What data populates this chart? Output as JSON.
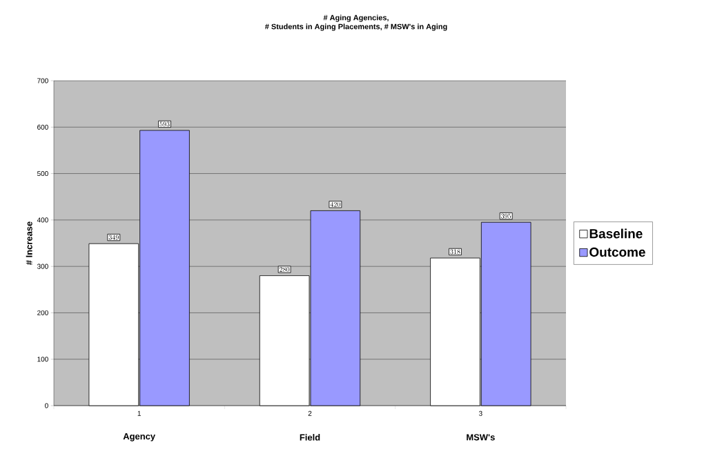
{
  "chart_data": {
    "type": "bar",
    "title": "# Aging Agencies,",
    "subtitle": "# Students in Aging Placements, # MSW's in Aging",
    "ylabel": "# Increase",
    "categories": [
      "1",
      "2",
      "3"
    ],
    "annotations": [
      "Agency",
      "Field",
      "MSW's"
    ],
    "series": [
      {
        "name": "Baseline",
        "color": "#ffffff",
        "values": [
          349,
          280,
          318
        ]
      },
      {
        "name": "Outcome",
        "color": "#9999ff",
        "values": [
          593,
          420,
          395
        ]
      }
    ],
    "ylim": [
      0,
      700
    ],
    "yticks": [
      0,
      100,
      200,
      300,
      400,
      500,
      600,
      700
    ],
    "grid": "y",
    "legend": "right",
    "data_labels": true
  }
}
